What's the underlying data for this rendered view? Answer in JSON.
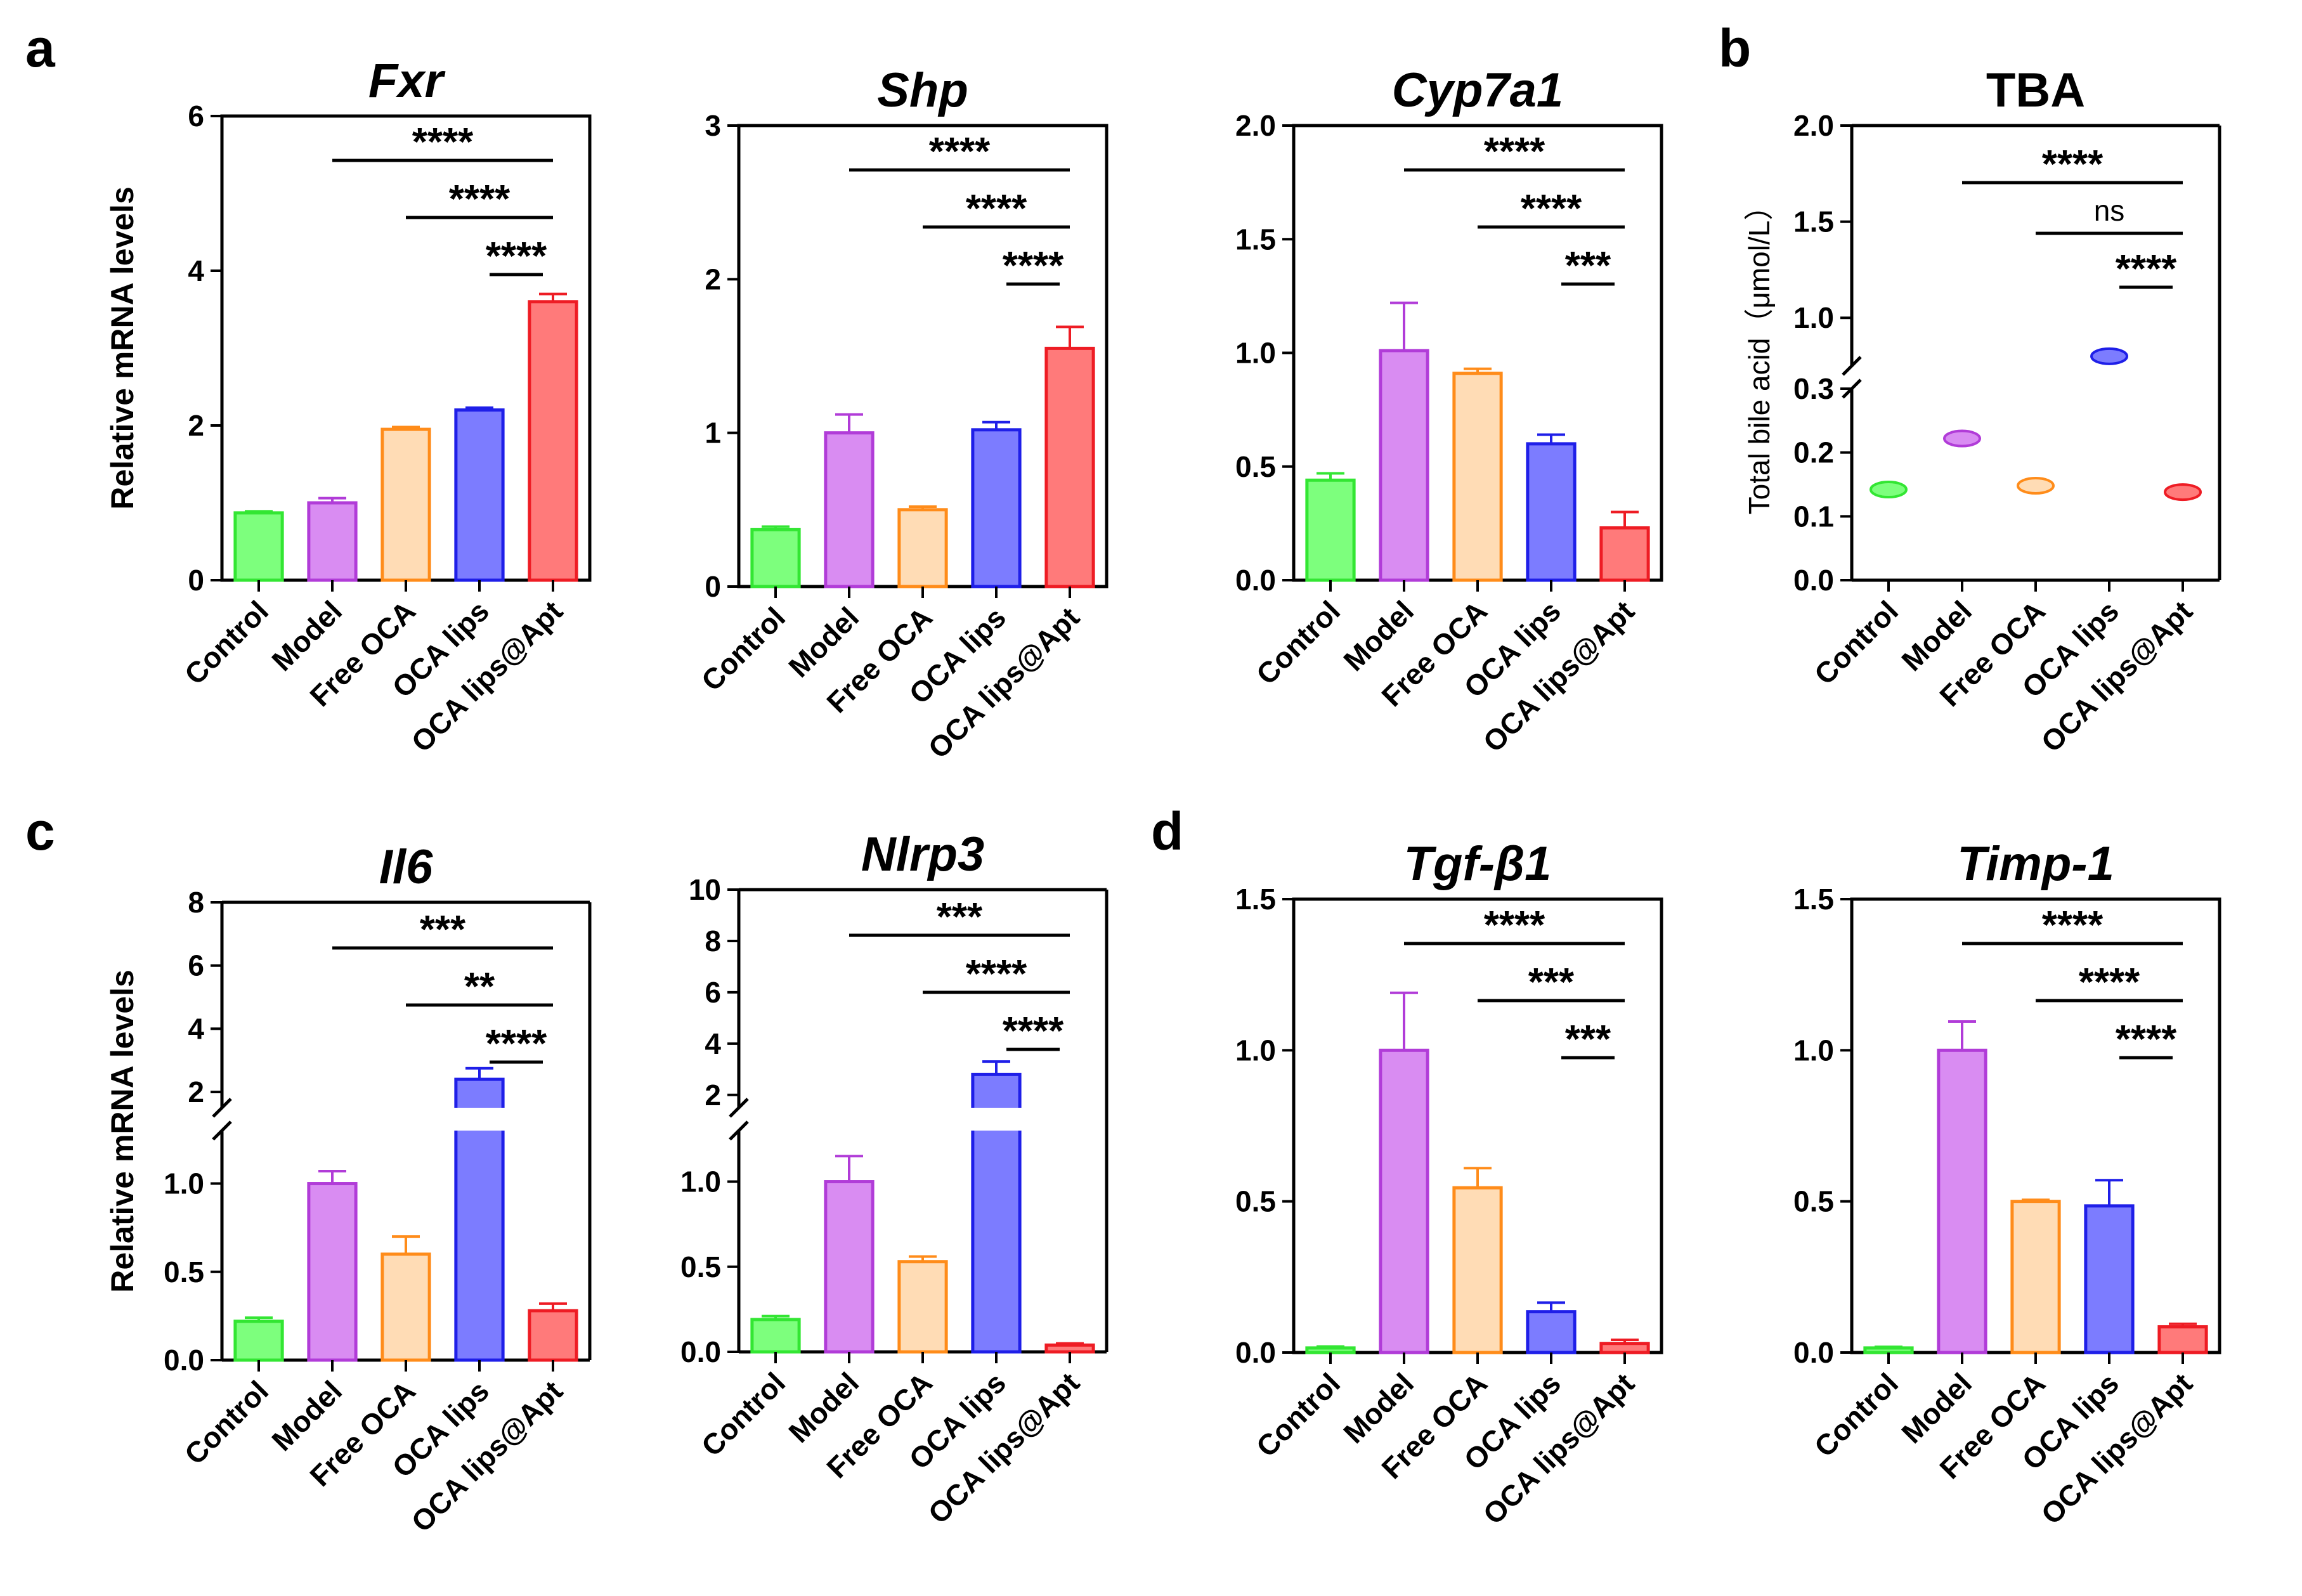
{
  "colors": {
    "Control": {
      "stroke": "#33e633",
      "fill": "#7dff7d"
    },
    "Model": {
      "stroke": "#b13cd8",
      "fill": "#d98cf2"
    },
    "Free OCA": {
      "stroke": "#ff8c1a",
      "fill": "#ffdcb5"
    },
    "OCA lips": {
      "stroke": "#1f1fe8",
      "fill": "#7c7cff"
    },
    "OCA lips@Apt": {
      "stroke": "#ee1c24",
      "fill": "#ff7a7a"
    }
  },
  "panel_labels": [
    "a",
    "b",
    "c",
    "d"
  ],
  "chart_data": [
    {
      "id": "fxr",
      "panel": "a",
      "type": "bar",
      "title": "Fxr",
      "ylabel": "Relative  mRNA levels",
      "categories": [
        "Control",
        "Model",
        "Free OCA",
        "OCA lips",
        "OCA lips@Apt"
      ],
      "values": [
        0.87,
        1.0,
        1.95,
        2.2,
        3.6
      ],
      "errors": [
        0.02,
        0.06,
        0.03,
        0.03,
        0.1
      ],
      "ylim": [
        0,
        6
      ],
      "yticks": [
        "0",
        "2",
        "4",
        "6"
      ],
      "annotations": [
        {
          "from": "Model",
          "to": "OCA lips@Apt",
          "text": "****"
        },
        {
          "from": "Free OCA",
          "to": "OCA lips@Apt",
          "text": "****"
        },
        {
          "from": "OCA lips",
          "to": "OCA lips@Apt",
          "text": "****"
        }
      ]
    },
    {
      "id": "shp",
      "panel": "a",
      "type": "bar",
      "title": "Shp",
      "ylabel": "",
      "categories": [
        "Control",
        "Model",
        "Free OCA",
        "OCA lips",
        "OCA lips@Apt"
      ],
      "values": [
        0.37,
        1.0,
        0.5,
        1.02,
        1.55
      ],
      "errors": [
        0.02,
        0.12,
        0.02,
        0.05,
        0.14
      ],
      "ylim": [
        0,
        3
      ],
      "yticks": [
        "0",
        "1",
        "2",
        "3"
      ],
      "annotations": [
        {
          "from": "Model",
          "to": "OCA lips@Apt",
          "text": "****"
        },
        {
          "from": "Free OCA",
          "to": "OCA lips@Apt",
          "text": "****"
        },
        {
          "from": "OCA lips",
          "to": "OCA lips@Apt",
          "text": "****"
        }
      ]
    },
    {
      "id": "cyp7a1",
      "panel": "a",
      "type": "bar",
      "title": "Cyp7a1",
      "ylabel": "",
      "categories": [
        "Control",
        "Model",
        "Free OCA",
        "OCA lips",
        "OCA lips@Apt"
      ],
      "values": [
        0.44,
        1.01,
        0.91,
        0.6,
        0.23
      ],
      "errors": [
        0.03,
        0.21,
        0.02,
        0.04,
        0.07
      ],
      "ylim": [
        0,
        2.0
      ],
      "yticks": [
        "0.0",
        "0.5",
        "1.0",
        "1.5",
        "2.0"
      ],
      "annotations": [
        {
          "from": "Model",
          "to": "OCA lips@Apt",
          "text": "****"
        },
        {
          "from": "Free OCA",
          "to": "OCA lips@Apt",
          "text": "****"
        },
        {
          "from": "OCA lips",
          "to": "OCA lips@Apt",
          "text": "***"
        }
      ]
    },
    {
      "id": "tba",
      "panel": "b",
      "type": "scatter",
      "title": "TBA",
      "ylabel": "Total bile acid（μmol/L）",
      "categories": [
        "Control",
        "Model",
        "Free OCA",
        "OCA lips",
        "OCA lips@Apt"
      ],
      "values": [
        0.142,
        0.222,
        0.148,
        0.8,
        0.138
      ],
      "errors": [
        0.004,
        0.006,
        0.005,
        0.015,
        0.003
      ],
      "segments": [
        {
          "from": 0,
          "to": 0.3,
          "ticks": [
            0,
            0.1,
            0.2,
            0.3
          ],
          "labels": [
            "0.0",
            "0.1",
            "0.2",
            "0.3"
          ]
        },
        {
          "from": 0.75,
          "to": 2.0,
          "ticks": [
            1.0,
            1.5,
            2.0
          ],
          "labels": [
            "1.0",
            "1.5",
            "2.0"
          ]
        }
      ],
      "annotations": [
        {
          "from": "Model",
          "to": "OCA lips@Apt",
          "text": "****"
        },
        {
          "from": "Free OCA",
          "to": "OCA lips@Apt",
          "text": "ns"
        },
        {
          "from": "OCA lips",
          "to": "OCA lips@Apt",
          "text": "****"
        }
      ]
    },
    {
      "id": "il6",
      "panel": "c",
      "type": "bar",
      "title": "Il6",
      "ylabel": "Relative  mRNA levels",
      "categories": [
        "Control",
        "Model",
        "Free OCA",
        "OCA lips",
        "OCA lips@Apt"
      ],
      "values": [
        0.22,
        1.0,
        0.6,
        2.4,
        0.28
      ],
      "errors": [
        0.02,
        0.07,
        0.1,
        0.35,
        0.04
      ],
      "segments": [
        {
          "from": 0,
          "to": 1.3,
          "ticks": [
            0,
            0.5,
            1.0
          ],
          "labels": [
            "0.0",
            "0.5",
            "1.0"
          ]
        },
        {
          "from": 1.5,
          "to": 8,
          "ticks": [
            2,
            4,
            6,
            8
          ],
          "labels": [
            "2",
            "4",
            "6",
            "8"
          ]
        }
      ],
      "annotations": [
        {
          "from": "Model",
          "to": "OCA lips@Apt",
          "text": "***"
        },
        {
          "from": "Free OCA",
          "to": "OCA lips@Apt",
          "text": "**"
        },
        {
          "from": "OCA lips",
          "to": "OCA lips@Apt",
          "text": "****"
        }
      ]
    },
    {
      "id": "nlrp3",
      "panel": "c",
      "type": "bar",
      "title": "Nlrp3",
      "ylabel": "",
      "categories": [
        "Control",
        "Model",
        "Free OCA",
        "OCA lips",
        "OCA lips@Apt"
      ],
      "values": [
        0.19,
        1.0,
        0.53,
        2.8,
        0.04
      ],
      "errors": [
        0.02,
        0.15,
        0.03,
        0.5,
        0.01
      ],
      "segments": [
        {
          "from": 0,
          "to": 1.3,
          "ticks": [
            0,
            0.5,
            1.0
          ],
          "labels": [
            "0.0",
            "0.5",
            "1.0"
          ]
        },
        {
          "from": 1.5,
          "to": 10,
          "ticks": [
            2,
            4,
            6,
            8,
            10
          ],
          "labels": [
            "2",
            "4",
            "6",
            "8",
            "10"
          ]
        }
      ],
      "annotations": [
        {
          "from": "Model",
          "to": "OCA lips@Apt",
          "text": "***"
        },
        {
          "from": "Free OCA",
          "to": "OCA lips@Apt",
          "text": "****"
        },
        {
          "from": "OCA lips",
          "to": "OCA lips@Apt",
          "text": "****"
        }
      ]
    },
    {
      "id": "tgfb1",
      "panel": "d",
      "type": "bar",
      "title": "Tgf-β1",
      "ylabel": "",
      "categories": [
        "Control",
        "Model",
        "Free OCA",
        "OCA lips",
        "OCA lips@Apt"
      ],
      "values": [
        0.015,
        1.0,
        0.545,
        0.135,
        0.03
      ],
      "errors": [
        0.005,
        0.19,
        0.065,
        0.03,
        0.012
      ],
      "ylim": [
        0,
        1.5
      ],
      "yticks": [
        "0.0",
        "0.5",
        "1.0",
        "1.5"
      ],
      "annotations": [
        {
          "from": "Model",
          "to": "OCA lips@Apt",
          "text": "****"
        },
        {
          "from": "Free OCA",
          "to": "OCA lips@Apt",
          "text": "***"
        },
        {
          "from": "OCA lips",
          "to": "OCA lips@Apt",
          "text": "***"
        }
      ]
    },
    {
      "id": "timp1",
      "panel": "d",
      "type": "bar",
      "title": "Timp-1",
      "ylabel": "",
      "categories": [
        "Control",
        "Model",
        "Free OCA",
        "OCA lips",
        "OCA lips@Apt"
      ],
      "values": [
        0.015,
        1.0,
        0.5,
        0.485,
        0.085
      ],
      "errors": [
        0.004,
        0.095,
        0.005,
        0.085,
        0.01
      ],
      "ylim": [
        0,
        1.5
      ],
      "yticks": [
        "0.0",
        "0.5",
        "1.0",
        "1.5"
      ],
      "annotations": [
        {
          "from": "Model",
          "to": "OCA lips@Apt",
          "text": "****"
        },
        {
          "from": "Free OCA",
          "to": "OCA lips@Apt",
          "text": "****"
        },
        {
          "from": "OCA lips",
          "to": "OCA lips@Apt",
          "text": "****"
        }
      ]
    }
  ]
}
